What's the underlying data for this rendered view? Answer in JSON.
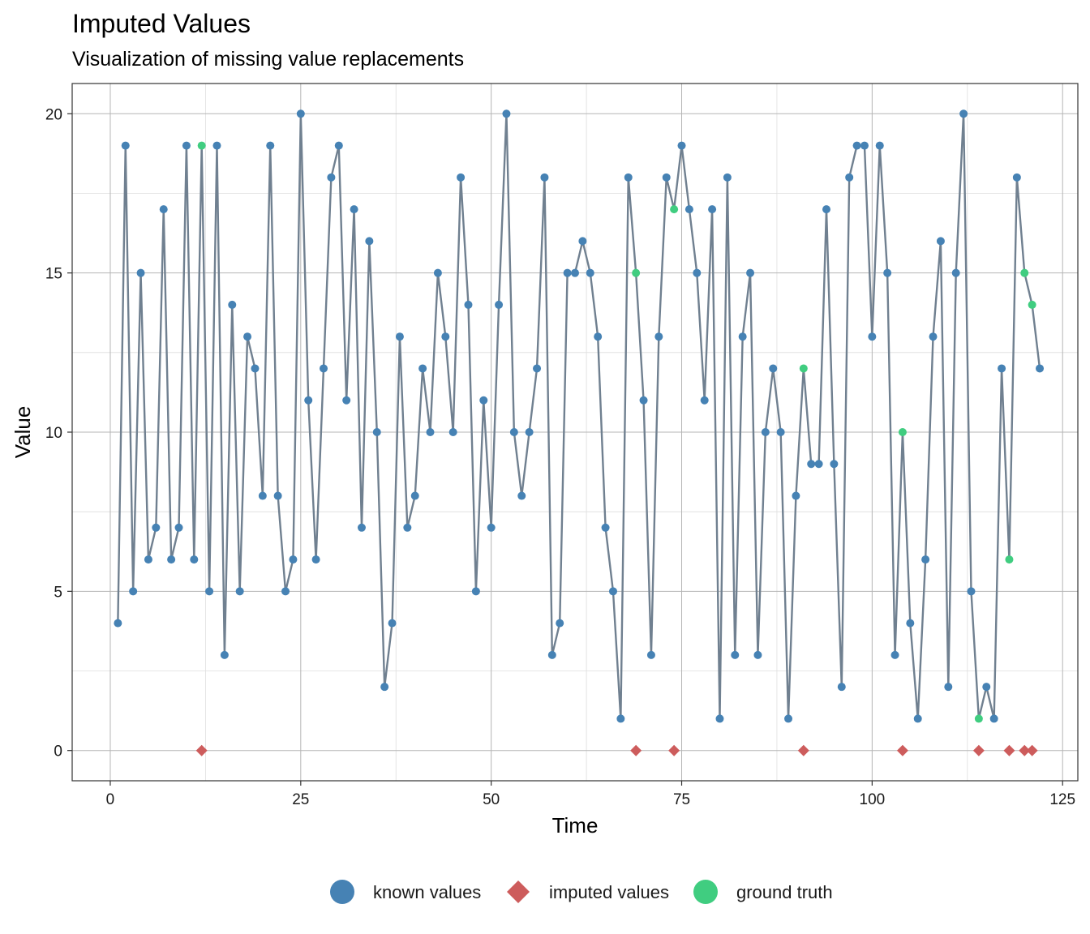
{
  "chart_data": {
    "type": "line",
    "title": "Imputed Values",
    "subtitle": "Visualization of missing value replacements",
    "xlabel": "Time",
    "ylabel": "Value",
    "xlim": [
      -5,
      127
    ],
    "ylim": [
      -0.95,
      20.95
    ],
    "xticks": [
      0,
      25,
      50,
      75,
      100,
      125
    ],
    "yticks": [
      0,
      5,
      10,
      15,
      20
    ],
    "x_minor_ticks": [
      12.5,
      37.5,
      62.5,
      87.5,
      112.5
    ],
    "y_minor_ticks": [
      2.5,
      7.5,
      12.5,
      17.5
    ],
    "grid": true,
    "legend_position": "bottom",
    "colors": {
      "known": "#4682B4",
      "line": "#708090",
      "imputed": "#CD5C5C",
      "ground_truth": "#40CD80"
    },
    "legend": [
      {
        "label": "known values",
        "shape": "circle",
        "color": "#4682B4"
      },
      {
        "label": "imputed values",
        "shape": "diamond",
        "color": "#CD5C5C"
      },
      {
        "label": "ground truth",
        "shape": "circle",
        "color": "#40CD80"
      }
    ],
    "series": [
      {
        "name": "known values",
        "x": [
          1,
          2,
          3,
          4,
          5,
          6,
          7,
          8,
          9,
          10,
          11,
          13,
          14,
          15,
          16,
          17,
          18,
          19,
          20,
          21,
          22,
          23,
          24,
          25,
          26,
          27,
          28,
          29,
          30,
          31,
          32,
          33,
          34,
          35,
          36,
          37,
          38,
          39,
          40,
          41,
          42,
          43,
          44,
          45,
          46,
          47,
          48,
          49,
          50,
          51,
          52,
          53,
          54,
          55,
          56,
          57,
          58,
          59,
          60,
          61,
          62,
          63,
          64,
          65,
          66,
          67,
          68,
          70,
          71,
          72,
          73,
          75,
          76,
          77,
          78,
          79,
          80,
          81,
          82,
          83,
          84,
          85,
          86,
          87,
          88,
          89,
          90,
          92,
          93,
          94,
          95,
          96,
          97,
          98,
          99,
          100,
          101,
          102,
          103,
          105,
          106,
          107,
          108,
          109,
          110,
          111,
          112,
          113,
          115,
          116,
          117,
          119,
          122
        ],
        "values": [
          4,
          19,
          5,
          15,
          6,
          7,
          17,
          6,
          7,
          19,
          6,
          5,
          19,
          3,
          14,
          5,
          13,
          12,
          8,
          19,
          8,
          5,
          6,
          20,
          11,
          6,
          12,
          18,
          19,
          11,
          17,
          7,
          16,
          10,
          2,
          4,
          13,
          7,
          8,
          12,
          10,
          15,
          13,
          10,
          18,
          14,
          5,
          11,
          7,
          14,
          20,
          10,
          8,
          10,
          12,
          18,
          3,
          4,
          15,
          15,
          16,
          15,
          13,
          7,
          5,
          1,
          18,
          11,
          3,
          13,
          18,
          19,
          17,
          15,
          11,
          17,
          1,
          18,
          3,
          13,
          15,
          3,
          10,
          12,
          10,
          1,
          8,
          9,
          9,
          17,
          9,
          2,
          18,
          19,
          19,
          13,
          19,
          15,
          3,
          4,
          1,
          6,
          13,
          16,
          2,
          15,
          20,
          5,
          2,
          1,
          12,
          18,
          12
        ]
      },
      {
        "name": "imputed values",
        "x": [
          12,
          69,
          74,
          91,
          104,
          114,
          118,
          120,
          121
        ],
        "values": [
          0,
          0,
          0,
          0,
          0,
          0,
          0,
          0,
          0
        ]
      },
      {
        "name": "ground truth",
        "x": [
          12,
          69,
          74,
          91,
          104,
          114,
          118,
          120,
          121
        ],
        "values": [
          19,
          15,
          17,
          12,
          10,
          1,
          6,
          15,
          14
        ]
      }
    ]
  }
}
